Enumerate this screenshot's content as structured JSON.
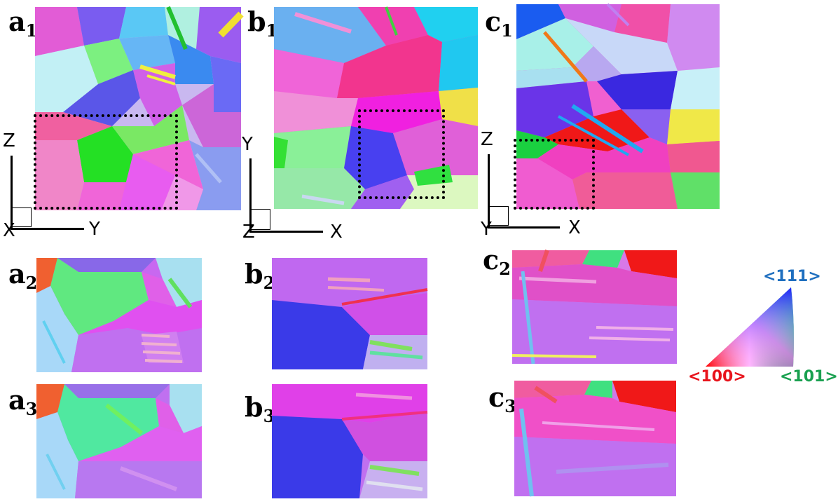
{
  "panels": {
    "a1": {
      "letter": "a",
      "index": "1"
    },
    "b1": {
      "letter": "b",
      "index": "1"
    },
    "c1": {
      "letter": "c",
      "index": "1"
    },
    "a2": {
      "letter": "a",
      "index": "2"
    },
    "b2": {
      "letter": "b",
      "index": "2"
    },
    "c2": {
      "letter": "c",
      "index": "2"
    },
    "a3": {
      "letter": "a",
      "index": "3"
    },
    "b3": {
      "letter": "b",
      "index": "3"
    },
    "c3": {
      "letter": "c",
      "index": "3"
    }
  },
  "axes": {
    "a": {
      "vertical": "Z",
      "horizontal": "Y",
      "normal": "X"
    },
    "b": {
      "vertical": "Y",
      "horizontal": "X",
      "normal": "Z"
    },
    "c": {
      "vertical": "Z",
      "horizontal": "X",
      "normal": "Y"
    }
  },
  "legend": {
    "c111": "<111>",
    "c100": "<100>",
    "c101": "<101>",
    "colors": {
      "c111": "#1f6fbf",
      "c100": "#e8141c",
      "c101": "#1aa050"
    }
  }
}
